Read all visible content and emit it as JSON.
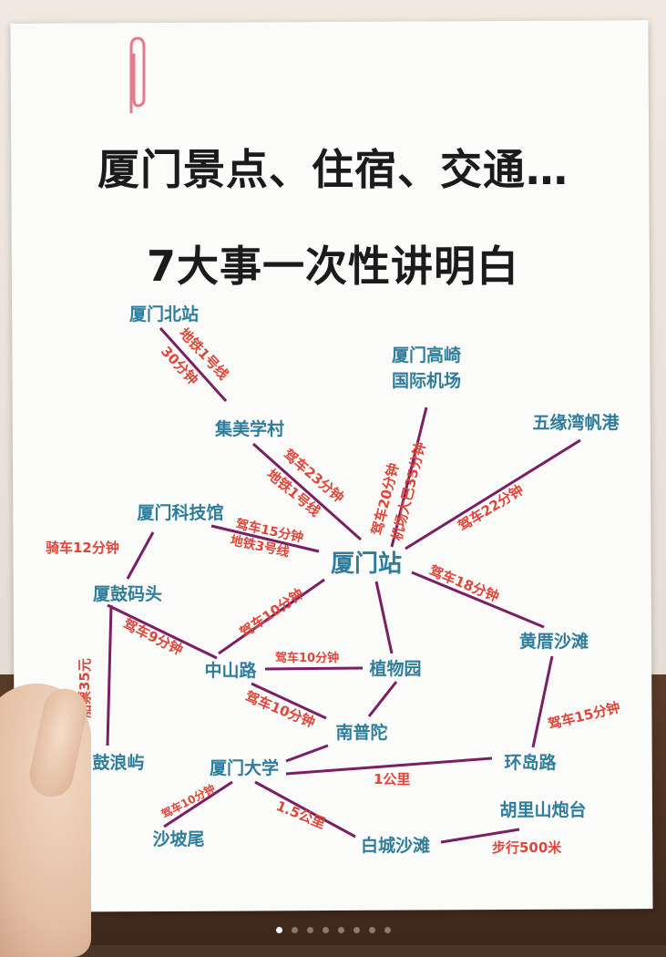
{
  "title_line1": "厦门景点、住宿、交通…",
  "title_line2": "7大事一次性讲明白",
  "watermark": "小红书",
  "colors": {
    "node": "#2f7d9c",
    "edge_label": "#e0453a",
    "line": "#7a1f63"
  },
  "nodes": {
    "bei_zhan": "厦门北站",
    "jimei": "集美学村",
    "airport_l1": "厦门高崎",
    "airport_l2": "国际机场",
    "wuyuan": "五缘湾帆港",
    "kejiguan": "厦门科技馆",
    "xiamen_zhan": "厦门站",
    "gulang_matou": "厦鼓码头",
    "zhongshan": "中山路",
    "zhiwuyuan": "植物园",
    "huangcuo": "黄厝沙滩",
    "nanputuo": "南普陀",
    "gulangyu": "鼓浪屿",
    "xiada": "厦门大学",
    "huandao": "环岛路",
    "hulishan": "胡里山炮台",
    "shapowei": "沙坡尾",
    "baicheng": "白城沙滩"
  },
  "edges": {
    "bei_jimei_a": "地铁1号线",
    "bei_jimei_b": "30分钟",
    "jimei_zhan_a": "驾车23分钟",
    "jimei_zhan_b": "地铁1号线",
    "airport_zhan_a": "驾车20分钟",
    "airport_zhan_b": "机场大巴35分钟",
    "wuyuan_zhan": "驾车22分钟",
    "keji_zhan_a": "驾车15分钟",
    "keji_zhan_b": "地铁3号线",
    "keji_matou": "骑车12分钟",
    "zhan_zhongshan": "驾车10分钟",
    "zhan_huangcuo": "驾车18分钟",
    "matou_zhongshan": "驾车9分钟",
    "matou_gulangyu": "船票35元",
    "zhongshan_zhiwu": "驾车10分钟",
    "zhongshan_nanputuo": "驾车10分钟",
    "huangcuo_huandao": "驾车15分钟",
    "xiada_huandao": "1公里",
    "xiada_shapowei": "驾车10分钟",
    "xiada_baicheng": "1.5公里",
    "baicheng_hulishan": "步行500米"
  }
}
